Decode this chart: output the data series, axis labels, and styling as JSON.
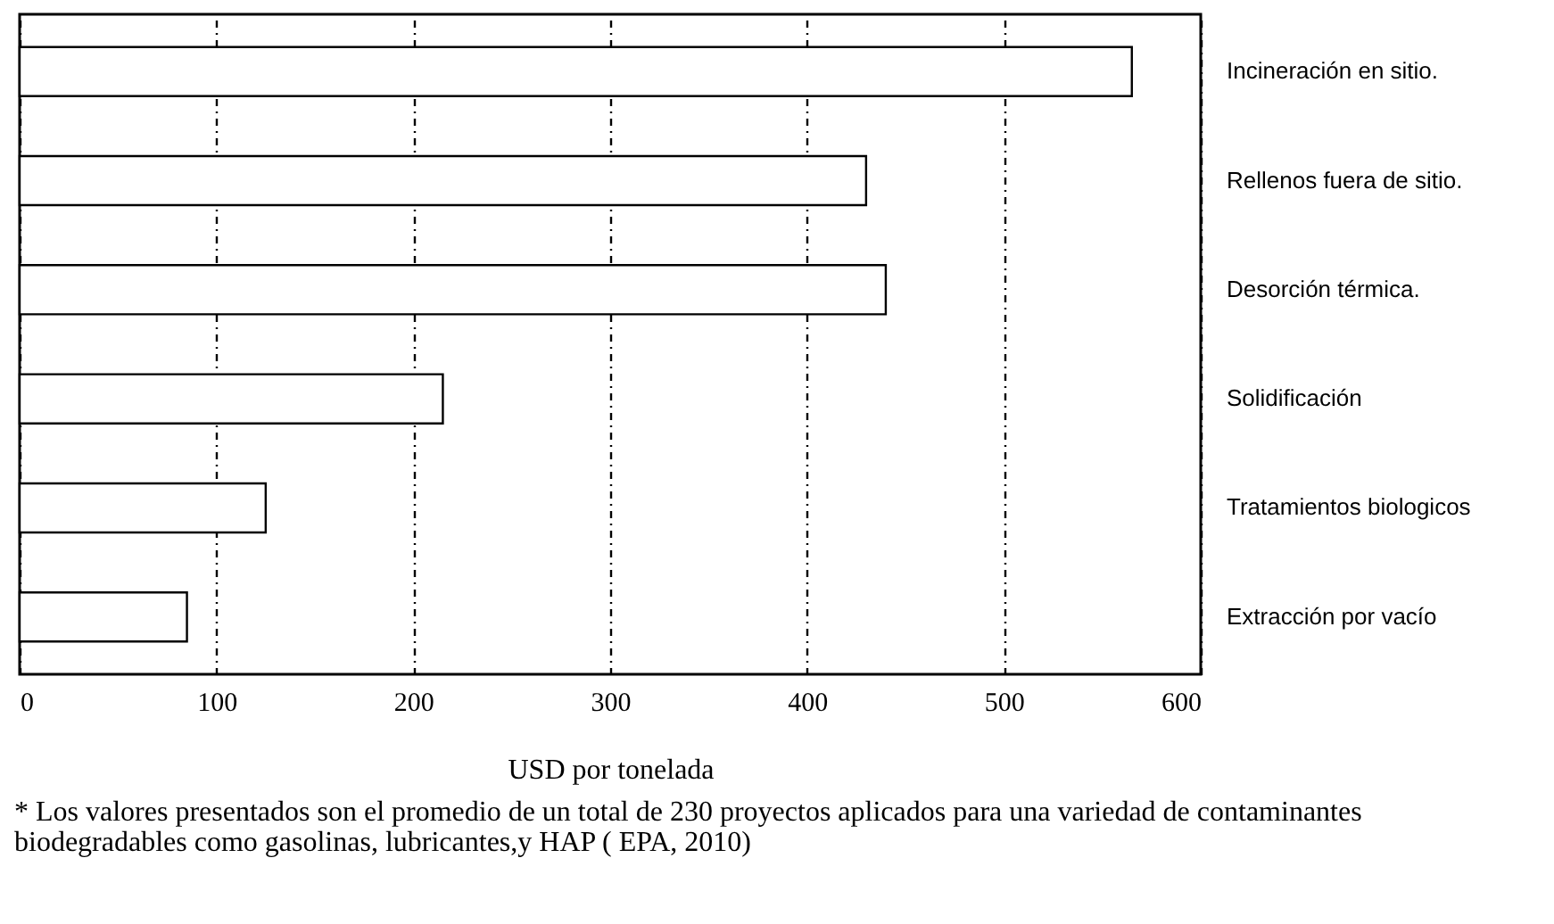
{
  "chart_data": {
    "type": "bar",
    "orientation": "horizontal",
    "xlabel": "USD por tonelada",
    "categories": [
      "Incineración en sitio.",
      "Rellenos fuera de sitio.",
      "Desorción térmica.",
      "Solidificación",
      "Tratamientos biologicos",
      "Extracción por vacío"
    ],
    "values": [
      565,
      430,
      440,
      215,
      125,
      85
    ],
    "color": "#ffffff",
    "xlim": [
      0,
      600
    ],
    "xticks": [
      0,
      100,
      200,
      300,
      400,
      500,
      600
    ],
    "grid": "x",
    "annotations": [
      "* Los valores presentados son el promedio de un total de 230 proyectos aplicados para una variedad de contaminantes biodegradables como gasolinas, lubricantes,y HAP ( EPA, 2010)"
    ]
  }
}
